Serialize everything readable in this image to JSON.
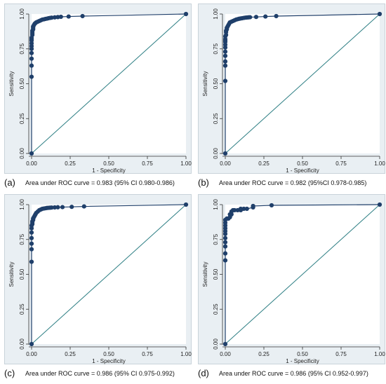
{
  "colors": {
    "navy": "#1f3f6a",
    "teal": "#2e7f84",
    "plot_bg": "#e9eff3",
    "inner_bg": "#ffffff"
  },
  "chart_data": [
    {
      "type": "line",
      "panel": "(a)",
      "xlabel": "1 - Specificity",
      "ylabel": "Sensitivity",
      "xlim": [
        0,
        1
      ],
      "ylim": [
        0,
        1
      ],
      "ticks": [
        "0.00",
        "0.25",
        "0.50",
        "0.75",
        "1.00"
      ],
      "reference_line": true,
      "caption": "Area under ROC curve = 0.983 (95% CI 0.980-0.986)",
      "series": [
        {
          "x": [
            0,
            0,
            0,
            0,
            0,
            0,
            0,
            0,
            0,
            0,
            0,
            0.005,
            0.005,
            0.005,
            0.005,
            0.01,
            0.01,
            0.01,
            0.015,
            0.02,
            0.025,
            0.03,
            0.04,
            0.05,
            0.06,
            0.07,
            0.08,
            0.09,
            0.1,
            0.11,
            0.12,
            0.13,
            0.15,
            0.17,
            0.19,
            0.24,
            0.33,
            1
          ],
          "y": [
            0,
            0.55,
            0.63,
            0.68,
            0.72,
            0.75,
            0.77,
            0.79,
            0.81,
            0.82,
            0.83,
            0.85,
            0.86,
            0.87,
            0.88,
            0.89,
            0.9,
            0.91,
            0.92,
            0.93,
            0.935,
            0.94,
            0.945,
            0.95,
            0.955,
            0.96,
            0.962,
            0.965,
            0.967,
            0.97,
            0.972,
            0.974,
            0.976,
            0.978,
            0.98,
            0.982,
            0.985,
            1
          ]
        }
      ]
    },
    {
      "type": "line",
      "panel": "(b)",
      "xlabel": "1 - Specificity",
      "ylabel": "Sensitivity",
      "xlim": [
        0,
        1
      ],
      "ylim": [
        0,
        1
      ],
      "ticks": [
        "0.00",
        "0.25",
        "0.50",
        "0.75",
        "1.00"
      ],
      "reference_line": true,
      "caption": "Area under ROC curve = 0.982 (95%CI 0.978-0.985)",
      "series": [
        {
          "x": [
            0,
            0,
            0,
            0,
            0,
            0,
            0,
            0,
            0,
            0,
            0,
            0,
            0.005,
            0.005,
            0.005,
            0.01,
            0.01,
            0.015,
            0.02,
            0.025,
            0.03,
            0.04,
            0.05,
            0.06,
            0.07,
            0.08,
            0.09,
            0.1,
            0.11,
            0.12,
            0.13,
            0.14,
            0.15,
            0.16,
            0.2,
            0.26,
            0.33,
            1
          ],
          "y": [
            0,
            0.52,
            0.63,
            0.66,
            0.7,
            0.73,
            0.76,
            0.78,
            0.8,
            0.81,
            0.82,
            0.84,
            0.85,
            0.87,
            0.88,
            0.89,
            0.9,
            0.91,
            0.92,
            0.93,
            0.94,
            0.945,
            0.95,
            0.955,
            0.96,
            0.963,
            0.966,
            0.968,
            0.97,
            0.972,
            0.974,
            0.975,
            0.976,
            0.977,
            0.979,
            0.982,
            0.985,
            1
          ]
        }
      ]
    },
    {
      "type": "line",
      "panel": "(c)",
      "xlabel": "1 - Specificity",
      "ylabel": "Sensitivity",
      "xlim": [
        0,
        1
      ],
      "ylim": [
        0,
        1
      ],
      "ticks": [
        "0.00",
        "0.25",
        "0.50",
        "0.75",
        "1.00"
      ],
      "reference_line": true,
      "caption": "Area under ROC curve = 0.986 (95% CI 0.975-0.992)",
      "series": [
        {
          "x": [
            0,
            0,
            0,
            0,
            0,
            0,
            0,
            0,
            0.005,
            0.005,
            0.005,
            0.01,
            0.01,
            0.015,
            0.02,
            0.025,
            0.03,
            0.04,
            0.05,
            0.06,
            0.07,
            0.08,
            0.09,
            0.1,
            0.11,
            0.12,
            0.13,
            0.15,
            0.17,
            0.2,
            0.26,
            0.34,
            1
          ],
          "y": [
            0,
            0.59,
            0.68,
            0.72,
            0.76,
            0.8,
            0.83,
            0.85,
            0.86,
            0.87,
            0.88,
            0.89,
            0.9,
            0.91,
            0.92,
            0.93,
            0.94,
            0.95,
            0.96,
            0.965,
            0.97,
            0.972,
            0.974,
            0.976,
            0.977,
            0.978,
            0.979,
            0.98,
            0.981,
            0.982,
            0.984,
            0.987,
            1
          ]
        }
      ]
    },
    {
      "type": "line",
      "panel": "(d)",
      "xlabel": "1 - Specificity",
      "ylabel": "Sensitivity",
      "xlim": [
        0,
        1
      ],
      "ylim": [
        0,
        1
      ],
      "ticks": [
        "0.00",
        "0.25",
        "0.50",
        "0.75",
        "1.00"
      ],
      "reference_line": true,
      "caption": "Area under ROC curve = 0.986 (95% CI 0.952-0.997)",
      "series": [
        {
          "x": [
            0,
            0,
            0,
            0,
            0,
            0,
            0,
            0,
            0,
            0,
            0,
            0,
            0.01,
            0.02,
            0.03,
            0.03,
            0.04,
            0.04,
            0.05,
            0.06,
            0.08,
            0.1,
            0.1,
            0.12,
            0.14,
            0.18,
            0.18,
            0.3,
            1
          ],
          "y": [
            0,
            0.6,
            0.65,
            0.7,
            0.73,
            0.76,
            0.79,
            0.81,
            0.83,
            0.85,
            0.87,
            0.89,
            0.9,
            0.9,
            0.91,
            0.93,
            0.93,
            0.95,
            0.96,
            0.96,
            0.96,
            0.96,
            0.97,
            0.97,
            0.97,
            0.98,
            0.99,
            0.995,
            1
          ]
        }
      ]
    }
  ]
}
